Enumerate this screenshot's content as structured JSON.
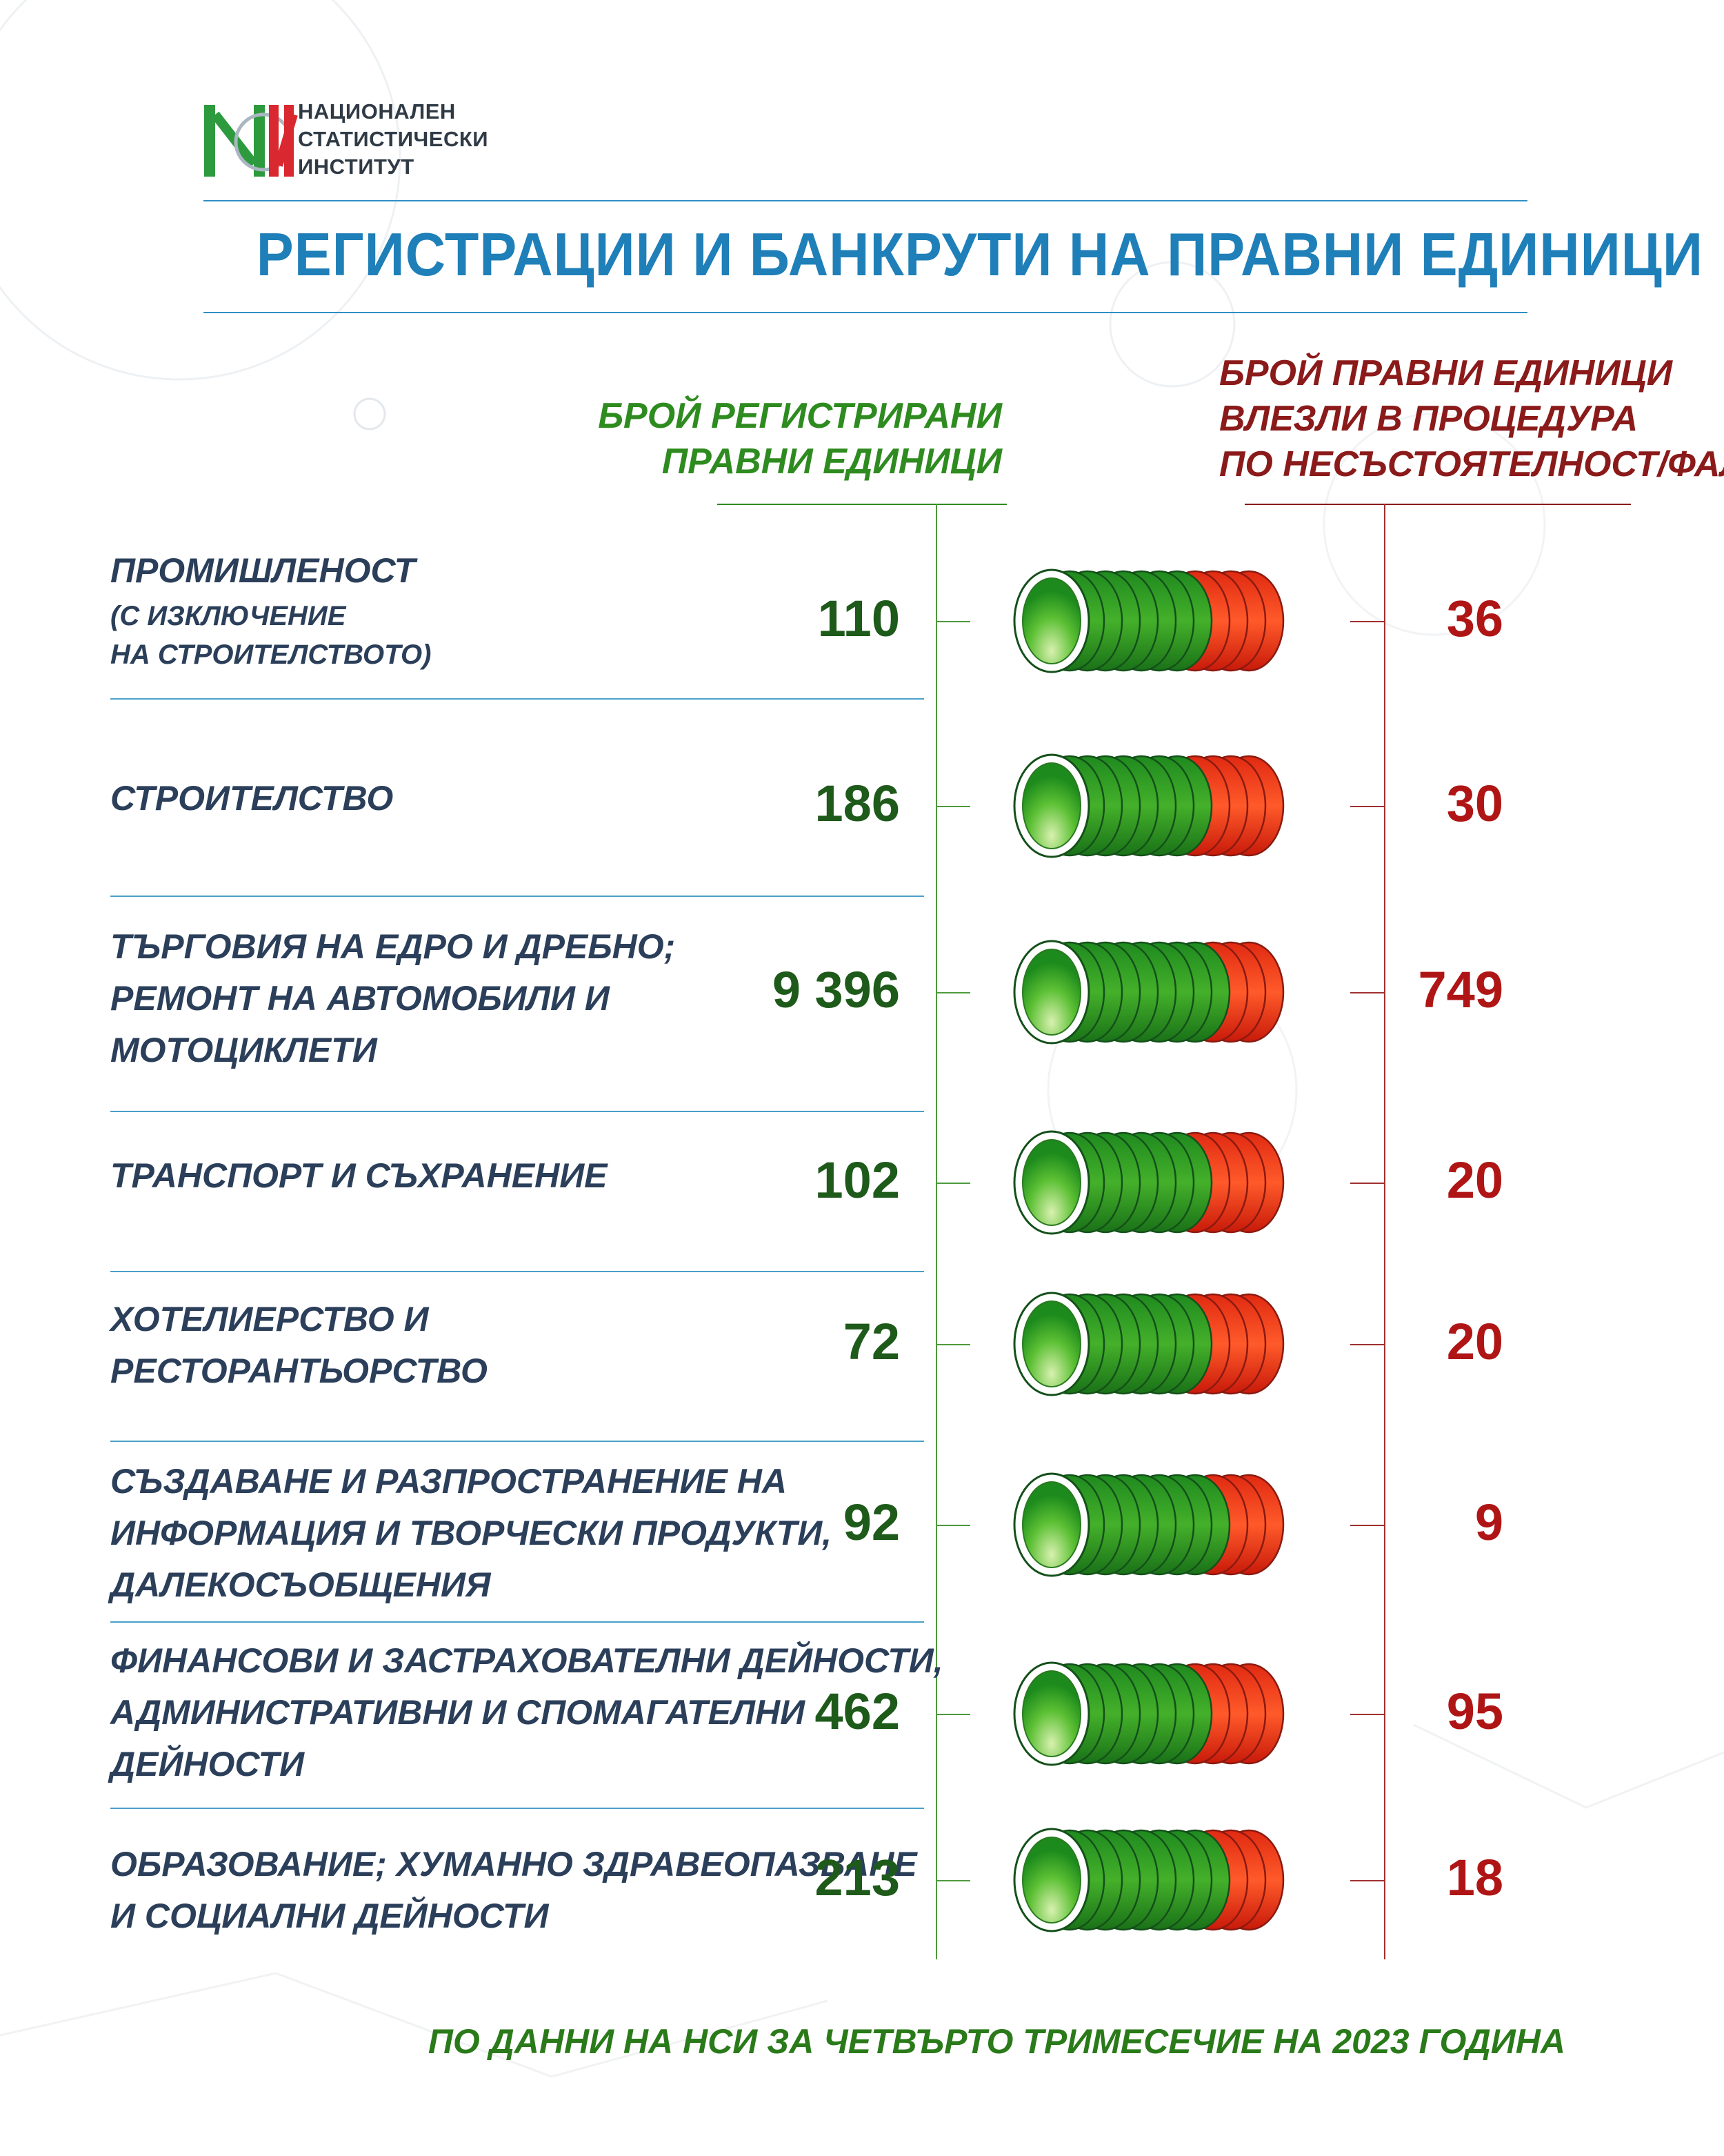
{
  "logo": {
    "mark": "НСИ",
    "lines": [
      "НАЦИОНАЛЕН",
      "СТАТИСТИЧЕСКИ",
      "ИНСТИТУТ"
    ]
  },
  "title": "РЕГИСТРАЦИИ И БАНКРУТИ НА ПРАВНИ ЕДИНИЦИ",
  "columns": {
    "registered": [
      "БРОЙ РЕГИСТРИРАНИ",
      "ПРАВНИ ЕДИНИЦИ"
    ],
    "insolvency": [
      "БРОЙ ПРАВНИ ЕДИНИЦИ",
      "ВЛЕЗЛИ В ПРОЦЕДУРА",
      "ПО НЕСЪСТОЯТЕЛНОСТ/ФАЛИТ"
    ]
  },
  "colors": {
    "green": "#2e8b1f",
    "red": "#b01515",
    "blue": "#1f7fb8"
  },
  "chart_data": {
    "type": "table",
    "categories": [
      "ПРОМИШЛЕНОСТ (С ИЗКЛЮЧЕНИЕ НА СТРОИТЕЛСТВОТО)",
      "СТРОИТЕЛСТВО",
      "ТЪРГОВИЯ НА ЕДРО И ДРЕБНО; РЕМОНТ НА АВТОМОБИЛИ И МОТОЦИКЛЕТИ",
      "ТРАНСПОРТ И СЪХРАНЕНИЕ",
      "ХОТЕЛИЕРСТВО И РЕСТОРАНТЬОРСТВО",
      "СЪЗДАВАНЕ И РАЗПРОСТРАНЕНИЕ НА ИНФОРМАЦИЯ И ТВОРЧЕСКИ ПРОДУКТИ, ДАЛЕКОСЪОБЩЕНИЯ",
      "ФИНАНСОВИ И ЗАСТРАХОВАТЕЛНИ ДЕЙНОСТИ, АДМИНИСТРАТИВНИ И СПОМАГАТЕЛНИ ДЕЙНОСТИ",
      "ОБРАЗОВАНИЕ; ХУМАННО ЗДРАВЕОПАЗВАНЕ И СОЦИАЛНИ ДЕЙНОСТИ"
    ],
    "rows": [
      {
        "label_lines": [
          "ПРОМИШЛЕНОСТ"
        ],
        "sub_lines": [
          "(С ИЗКЛЮЧЕНИЕ",
          "НА СТРОИТЕЛСТВОТО)"
        ],
        "registered": "110",
        "insolvency": "36",
        "reg_value": 110,
        "ins_value": 36
      },
      {
        "label_lines": [
          "СТРОИТЕЛСТВО"
        ],
        "sub_lines": [],
        "registered": "186",
        "insolvency": "30",
        "reg_value": 186,
        "ins_value": 30
      },
      {
        "label_lines": [
          "ТЪРГОВИЯ НА ЕДРО И ДРЕБНО;",
          "РЕМОНТ НА АВТОМОБИЛИ И",
          "МОТОЦИКЛЕТИ"
        ],
        "sub_lines": [],
        "registered": "9 396",
        "insolvency": "749",
        "reg_value": 9396,
        "ins_value": 749
      },
      {
        "label_lines": [
          "ТРАНСПОРТ И СЪХРАНЕНИЕ"
        ],
        "sub_lines": [],
        "registered": "102",
        "insolvency": "20",
        "reg_value": 102,
        "ins_value": 20
      },
      {
        "label_lines": [
          "ХОТЕЛИЕРСТВО И",
          "РЕСТОРАНТЬОРСТВО"
        ],
        "sub_lines": [],
        "registered": "72",
        "insolvency": "20",
        "reg_value": 72,
        "ins_value": 20
      },
      {
        "label_lines": [
          "СЪЗДАВАНЕ И РАЗПРОСТРАНЕНИЕ НА",
          "ИНФОРМАЦИЯ И ТВОРЧЕСКИ ПРОДУКТИ,",
          "ДАЛЕКОСЪОБЩЕНИЯ"
        ],
        "sub_lines": [],
        "registered": "92",
        "insolvency": "9",
        "reg_value": 92,
        "ins_value": 9
      },
      {
        "label_lines": [
          "ФИНАНСОВИ И ЗАСТРАХОВАТЕЛНИ ДЕЙНОСТИ,",
          "АДМИНИСТРАТИВНИ И СПОМАГАТЕЛНИ",
          "ДЕЙНОСТИ"
        ],
        "sub_lines": [],
        "registered": "462",
        "insolvency": "95",
        "reg_value": 462,
        "ins_value": 95
      },
      {
        "label_lines": [
          "ОБРАЗОВАНИЕ; ХУМАННО ЗДРАВЕОПАЗВАНЕ",
          "И СОЦИАЛНИ ДЕЙНОСТИ"
        ],
        "sub_lines": [],
        "registered": "213",
        "insolvency": "18",
        "reg_value": 213,
        "ins_value": 18
      }
    ]
  },
  "footer": "ПО ДАННИ НА НСИ ЗА ЧЕТВЪРТО ТРИМЕСЕЧИЕ НА 2023 ГОДИНА"
}
